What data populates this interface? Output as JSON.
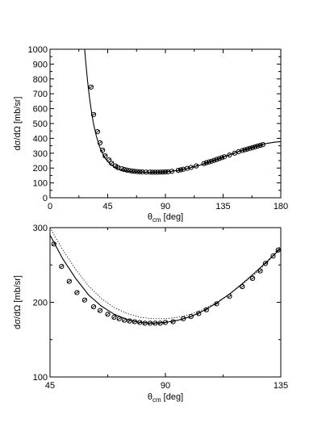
{
  "chart_data": [
    {
      "type": "scatter",
      "xlabel_main": "θ",
      "xlabel_sub": "cm",
      "xlabel_unit": "[deg]",
      "ylabel": "dσ/dΩ [mb/sr]",
      "xlim": [
        0,
        180
      ],
      "ylim": [
        0,
        1000
      ],
      "xticks": [
        0,
        45,
        90,
        135,
        180
      ],
      "yticks": [
        0,
        100,
        200,
        300,
        400,
        500,
        600,
        700,
        800,
        900,
        1000
      ],
      "grid": false,
      "series": [
        {
          "style": "solid-line",
          "x": [
            27,
            28,
            29,
            30,
            31,
            32,
            33,
            34,
            36,
            38,
            40,
            43,
            46,
            50,
            55,
            60,
            65,
            70,
            75,
            80,
            85,
            90,
            95,
            100,
            105,
            110,
            115,
            120,
            125,
            130,
            135,
            140,
            145,
            150,
            155,
            160,
            165,
            170,
            175,
            180
          ],
          "y": [
            1000,
            900,
            810,
            730,
            660,
            600,
            545,
            495,
            420,
            360,
            315,
            265,
            235,
            207,
            188,
            179,
            174,
            172,
            171,
            171,
            172,
            174,
            178,
            185,
            193,
            203,
            215,
            228,
            243,
            258,
            274,
            290,
            305,
            320,
            334,
            347,
            358,
            367,
            374,
            378
          ]
        },
        {
          "style": "circle-markers",
          "x": [
            32,
            34,
            37,
            39,
            41,
            43,
            46,
            48,
            51,
            53,
            56,
            58,
            60,
            62,
            64,
            66,
            68,
            70,
            72,
            75,
            78,
            80,
            82,
            84,
            86,
            88,
            90,
            92,
            95,
            100,
            102,
            104,
            107,
            110,
            114,
            120,
            122,
            124,
            126,
            128,
            130,
            132,
            134,
            136,
            140,
            144,
            147,
            150,
            152,
            154,
            156,
            158,
            160,
            162,
            164,
            166
          ],
          "y": [
            745,
            560,
            445,
            370,
            320,
            282,
            255,
            232,
            214,
            203,
            195,
            190,
            186,
            183,
            180,
            178,
            176,
            175,
            174,
            173,
            173,
            172,
            172,
            172,
            173,
            173,
            174,
            175,
            178,
            185,
            188,
            192,
            198,
            204,
            214,
            230,
            236,
            241,
            246,
            252,
            258,
            264,
            270,
            276,
            288,
            300,
            310,
            318,
            323,
            328,
            333,
            338,
            343,
            348,
            353,
            358
          ]
        }
      ]
    },
    {
      "type": "scatter",
      "xlabel_main": "θ",
      "xlabel_sub": "cm",
      "xlabel_unit": "[deg]",
      "ylabel": "dσ/dΩ [mb/sr]",
      "xlim": [
        45,
        135
      ],
      "ylim": [
        100,
        300
      ],
      "xticks": [
        45,
        90,
        135
      ],
      "yticks": [
        100,
        200,
        300
      ],
      "grid": false,
      "series": [
        {
          "style": "solid-line",
          "x": [
            45,
            50,
            55,
            60,
            65,
            70,
            75,
            80,
            85,
            90,
            95,
            100,
            105,
            110,
            115,
            120,
            125,
            130,
            135
          ],
          "y": [
            290,
            258,
            232,
            210,
            195,
            184,
            177,
            173,
            172,
            173,
            176,
            181,
            189,
            199,
            211,
            225,
            240,
            256,
            272
          ]
        },
        {
          "style": "dotted-line",
          "x": [
            45,
            50,
            55,
            60,
            65,
            70,
            75,
            80,
            85,
            90,
            95,
            100,
            105,
            110,
            115,
            120,
            125,
            130,
            135
          ],
          "y": [
            300,
            270,
            244,
            222,
            205,
            193,
            185,
            180,
            178,
            178,
            180,
            184,
            191,
            200,
            211,
            224,
            238,
            254,
            276
          ]
        },
        {
          "style": "circle-markers",
          "x": [
            46.5,
            49.5,
            52.5,
            55.5,
            58.5,
            62,
            64.5,
            67.5,
            70,
            72,
            74,
            76,
            78,
            80,
            82,
            84,
            86,
            88,
            90,
            93,
            97,
            100,
            103,
            106,
            110,
            115,
            120,
            124,
            127,
            129,
            132,
            134
          ],
          "y": [
            278,
            248,
            228,
            213,
            203,
            194,
            189,
            184,
            180,
            178,
            176,
            175,
            174,
            173,
            172,
            172,
            172,
            172,
            173,
            174,
            178,
            181,
            185,
            190,
            198,
            208,
            221,
            232,
            242,
            252,
            262,
            270
          ]
        }
      ]
    }
  ]
}
